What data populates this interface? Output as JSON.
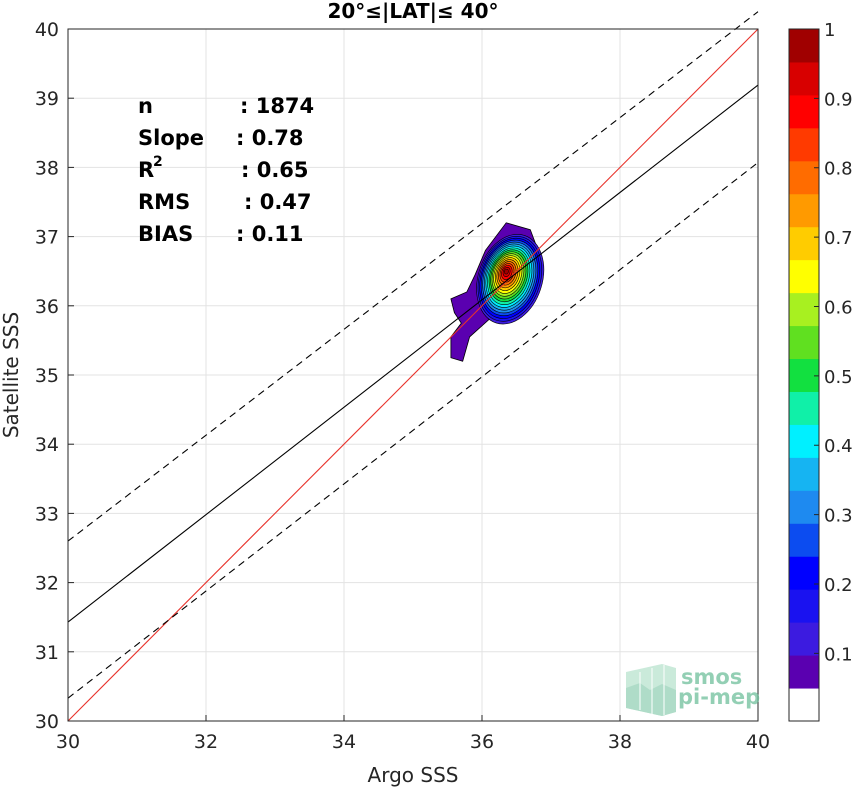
{
  "chart_data": {
    "type": "contour-scatter",
    "title": "20°≤|LAT|≤ 40°",
    "xlabel": "Argo SSS",
    "ylabel": "Satellite SSS",
    "xlim": [
      30,
      40
    ],
    "ylim": [
      30,
      40
    ],
    "xticks": [
      "30",
      "32",
      "34",
      "36",
      "38",
      "40"
    ],
    "yticks": [
      "30",
      "31",
      "32",
      "33",
      "34",
      "35",
      "36",
      "37",
      "38",
      "39",
      "40"
    ],
    "grid": true,
    "stats": [
      {
        "label": "n",
        "value": ": 1874"
      },
      {
        "label": "Slope",
        "value": ": 0.78"
      },
      {
        "label": "R",
        "sup": "2",
        "value": ": 0.65"
      },
      {
        "label": "RMS",
        "value": ": 0.47"
      },
      {
        "label": "BIAS",
        "value": ": 0.11"
      }
    ],
    "lines": [
      {
        "role": "one-to-one",
        "color": "#e8322b",
        "style": "solid",
        "x": [
          30,
          40
        ],
        "y": [
          30,
          40
        ]
      },
      {
        "role": "regression",
        "color": "#000000",
        "style": "solid",
        "x": [
          30,
          40
        ],
        "y": [
          31.43,
          39.19
        ]
      },
      {
        "role": "upper-bound",
        "color": "#000000",
        "style": "dashed",
        "x": [
          30,
          40
        ],
        "y": [
          32.6,
          40.25
        ]
      },
      {
        "role": "lower-bound",
        "color": "#000000",
        "style": "dashed",
        "x": [
          30,
          40
        ],
        "y": [
          30.33,
          38.07
        ]
      }
    ],
    "density_peak": {
      "x": 36.35,
      "y": 36.5
    },
    "contour_levels": [
      0.05,
      0.1,
      0.15,
      0.2,
      0.25,
      0.3,
      0.35,
      0.4,
      0.45,
      0.5,
      0.55,
      0.6,
      0.65,
      0.7,
      0.75,
      0.8,
      0.85,
      0.9,
      0.95
    ],
    "colorbar": {
      "ticks": [
        "0.1",
        "0.2",
        "0.3",
        "0.4",
        "0.5",
        "0.6",
        "0.7",
        "0.8",
        "0.9",
        "1"
      ],
      "colors": [
        "#ffffff",
        "#5a00b0",
        "#3c1be0",
        "#1a12f0",
        "#0000ff",
        "#0c4cf0",
        "#1e8af0",
        "#16b4f2",
        "#00f0ff",
        "#10f0a8",
        "#12e040",
        "#60e020",
        "#a8f020",
        "#ffff00",
        "#ffcc00",
        "#ff9a00",
        "#ff6c00",
        "#ff3a00",
        "#ff0000",
        "#d80000",
        "#a00000"
      ]
    }
  },
  "logo": {
    "line1": "smos",
    "line2": "pi-mep"
  }
}
